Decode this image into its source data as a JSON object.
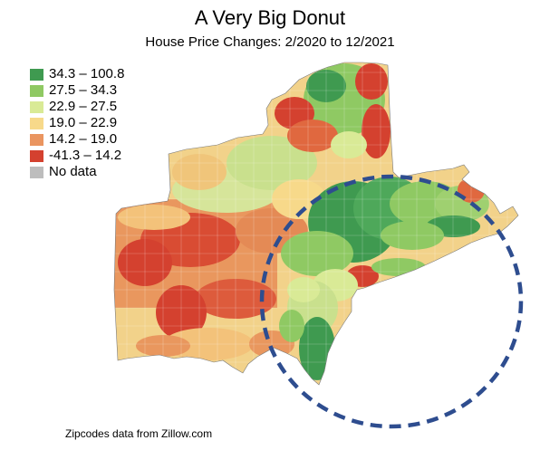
{
  "title": "A Very Big Donut",
  "subtitle": "House Price Changes: 2/2020 to 12/2021",
  "legend": [
    {
      "label": "34.3 – 100.8",
      "color": "#3f9a50"
    },
    {
      "label": "27.5 – 34.3",
      "color": "#8fc963"
    },
    {
      "label": "22.9 – 27.5",
      "color": "#d9ea96"
    },
    {
      "label": "19.0 – 22.9",
      "color": "#f7d98a"
    },
    {
      "label": "14.2 – 19.0",
      "color": "#ea9560"
    },
    {
      "label": "-41.3 – 14.2",
      "color": "#d4412f"
    },
    {
      "label": "No data",
      "color": "#bdbdbd"
    }
  ],
  "donut_circle_color": "#2e4d8f",
  "source": "Zipcodes data from Zillow.com"
}
